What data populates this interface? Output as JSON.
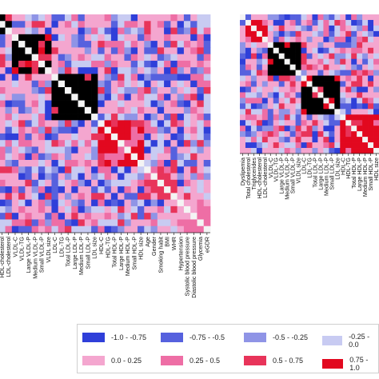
{
  "chart_data": [
    {
      "type": "heatmap",
      "panel": "left",
      "row_labels": [
        "Triglycerides",
        "HDL-cholesterol",
        "LDL-cholesterol",
        "VLDL-C",
        "VLDL-TG",
        "Large VLDL-P",
        "Medium VLDL-P",
        "Small VLDL-P",
        "VLDL size",
        "LDL-C",
        "LDL-TG",
        "Total LDL-P",
        "Large LDL-P",
        "Medium LDL-P",
        "Small LDL-P",
        "LDL size",
        "HDL-C",
        "HDL-TG",
        "Total HDL-P",
        "Large HDL-P",
        "Medium HDL-P",
        "Small HDL-P",
        "HDL size",
        "Age",
        "Gender",
        "Smoking habit",
        "BMI",
        "WHR",
        "Hypertension",
        "Systolic blood pressure",
        "Diastolic blood pressure",
        "Glycemia",
        "eGDR"
      ],
      "blocks": [
        {
          "from": 0,
          "to": 2,
          "level": 9
        },
        {
          "from": 3,
          "to": 8,
          "level": 9
        },
        {
          "from": 9,
          "to": 15,
          "level": 9
        },
        {
          "from": 16,
          "to": 22,
          "level": 8
        },
        {
          "from": 23,
          "to": 27,
          "level": 7
        },
        {
          "from": 28,
          "to": 32,
          "level": 6
        }
      ]
    },
    {
      "type": "heatmap",
      "panel": "right",
      "row_labels": [
        "Dyslipemia",
        "Total cholesterol",
        "Triglycerides",
        "HDL-cholesterol",
        "LDL-cholesterol",
        "VLDL-C",
        "VLDL-TG",
        "Large VLDL-P",
        "Medium VLDL-P",
        "Small VLDL-P",
        "VLDL size",
        "LDL-C",
        "LDL-TG",
        "Total LDL-P",
        "Large LDL-P",
        "Medium LDL-P",
        "Small LDL-P",
        "LDL size",
        "HDL-C",
        "HDL-TG",
        "Total HDL-P",
        "Large HDL-P",
        "Medium HDL-P",
        "Small HDL-P",
        "HDL size"
      ],
      "blocks": [
        {
          "from": 1,
          "to": 4,
          "level": 8
        },
        {
          "from": 5,
          "to": 10,
          "level": 9
        },
        {
          "from": 11,
          "to": 17,
          "level": 9
        },
        {
          "from": 18,
          "to": 24,
          "level": 8
        }
      ]
    }
  ],
  "legend": {
    "items": [
      {
        "label": "-1.0 - -0.75",
        "color": "#2f3fd9"
      },
      {
        "label": "-0.75 - -0.5",
        "color": "#5661de"
      },
      {
        "label": "-0.5 - -0.25",
        "color": "#8f94e6"
      },
      {
        "label": "-0.25 - 0.0",
        "color": "#c8cbf2"
      },
      {
        "label": "0.0 - 0.25",
        "color": "#f4a6cf"
      },
      {
        "label": "0.25 - 0.5",
        "color": "#ee6ea5"
      },
      {
        "label": "0.5 - 0.75",
        "color": "#e8345a"
      },
      {
        "label": "0.75 - 1.0",
        "color": "#e2081f"
      }
    ]
  },
  "diagonal_color": "#f4f4f4"
}
